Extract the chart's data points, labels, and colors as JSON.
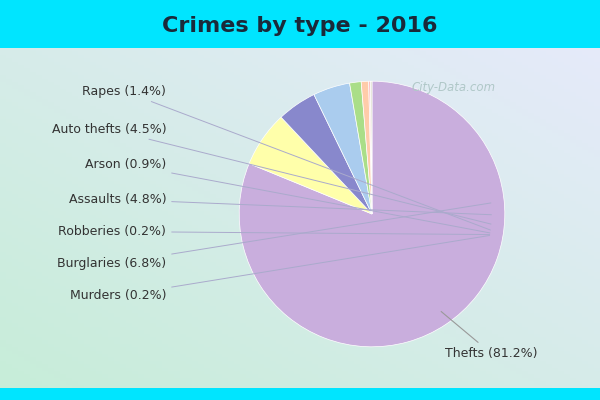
{
  "title": "Crimes by type - 2016",
  "labels": [
    "Thefts",
    "Burglaries",
    "Assaults",
    "Auto thefts",
    "Rapes",
    "Arson",
    "Robberies",
    "Murders"
  ],
  "values": [
    81.2,
    6.8,
    4.8,
    4.5,
    1.4,
    0.9,
    0.2,
    0.2
  ],
  "colors": [
    "#c9aedd",
    "#ffffaa",
    "#8888cc",
    "#aaccee",
    "#aade88",
    "#ffccaa",
    "#ffbbbb",
    "#ddddcc"
  ],
  "bg_cyan": "#00e5ff",
  "bg_grad_top": "#c8eedc",
  "bg_grad_bottom": "#ddeeff",
  "title_fontsize": 16,
  "label_fontsize": 9,
  "watermark": "City-Data.com"
}
